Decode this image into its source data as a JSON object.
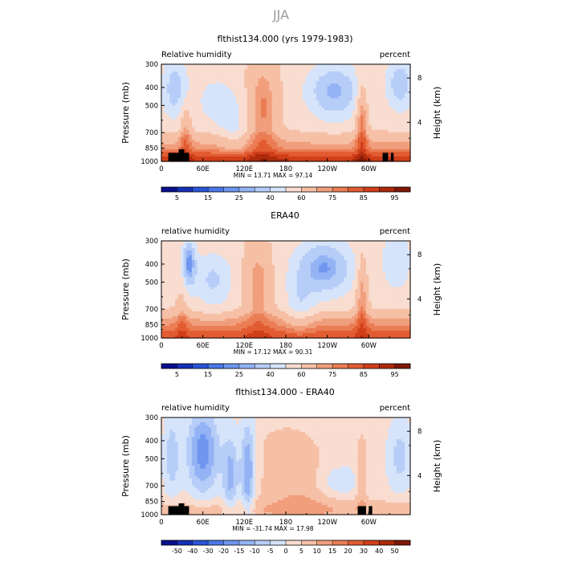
{
  "figure": {
    "suptitle": "JJA"
  },
  "chart_data": [
    {
      "type": "heatmap",
      "title": "flthist134.000 (yrs 1979-1983)",
      "left_label": "Relative humidity",
      "right_label": "percent",
      "xlabel": "",
      "ylabel": "Pressure  (mb)",
      "ylabel_right": "Height  (km)",
      "x_ticks": [
        "0",
        "60E",
        "120E",
        "180",
        "120W",
        "60W"
      ],
      "x_tick_values": [
        0,
        60,
        120,
        180,
        240,
        300
      ],
      "xlim": [
        0,
        360
      ],
      "y_ticks": [
        "300",
        "400",
        "500",
        "700",
        "850",
        "1000"
      ],
      "y_tick_values": [
        300,
        400,
        500,
        700,
        850,
        1000
      ],
      "ylim": [
        1000,
        300
      ],
      "y_scale": "log",
      "y_right_ticks": [
        "8",
        "4"
      ],
      "y_right_tick_values": [
        8,
        4
      ],
      "stats_text": "MIN =   13.71   MAX =   97.14",
      "min": 13.71,
      "max": 97.14,
      "colorbar": {
        "labels": [
          "5",
          "15",
          "25",
          "40",
          "60",
          "75",
          "85",
          "95"
        ],
        "label_positions": [
          1,
          3,
          5,
          7,
          9,
          11,
          13,
          15
        ],
        "colors": [
          "#08108c",
          "#1630b8",
          "#2a55d8",
          "#4a78e8",
          "#6e96ef",
          "#93b3f4",
          "#b6cdf8",
          "#d6e4fb",
          "#f9ddd0",
          "#f6c0a6",
          "#f19e7c",
          "#eb7d55",
          "#e25c32",
          "#d03f1a",
          "#ad2a0c",
          "#7f1808"
        ]
      },
      "mode": "abs",
      "topography": [
        [
          10,
          25,
          900
        ],
        [
          25,
          33,
          860
        ],
        [
          33,
          40,
          900
        ],
        [
          320,
          328,
          900
        ],
        [
          332,
          336,
          900
        ]
      ]
    },
    {
      "type": "heatmap",
      "title": "ERA40",
      "left_label": "relative humidity",
      "right_label": "percent",
      "xlabel": "",
      "ylabel": "Pressure  (mb)",
      "ylabel_right": "Height  (km)",
      "x_ticks": [
        "0",
        "60E",
        "120E",
        "180",
        "120W",
        "60W"
      ],
      "x_tick_values": [
        0,
        60,
        120,
        180,
        240,
        300
      ],
      "xlim": [
        0,
        360
      ],
      "y_ticks": [
        "300",
        "400",
        "500",
        "700",
        "850",
        "1000"
      ],
      "y_tick_values": [
        300,
        400,
        500,
        700,
        850,
        1000
      ],
      "ylim": [
        1000,
        300
      ],
      "y_scale": "log",
      "y_right_ticks": [
        "8",
        "4"
      ],
      "y_right_tick_values": [
        8,
        4
      ],
      "stats_text": "MIN =   17.12   MAX =   90.31",
      "min": 17.12,
      "max": 90.31,
      "colorbar": {
        "labels": [
          "5",
          "15",
          "25",
          "40",
          "60",
          "75",
          "85",
          "95"
        ],
        "label_positions": [
          1,
          3,
          5,
          7,
          9,
          11,
          13,
          15
        ],
        "colors": [
          "#08108c",
          "#1630b8",
          "#2a55d8",
          "#4a78e8",
          "#6e96ef",
          "#93b3f4",
          "#b6cdf8",
          "#d6e4fb",
          "#f9ddd0",
          "#f6c0a6",
          "#f19e7c",
          "#eb7d55",
          "#e25c32",
          "#d03f1a",
          "#ad2a0c",
          "#7f1808"
        ]
      },
      "mode": "abs2",
      "topography": []
    },
    {
      "type": "heatmap",
      "title": "flthist134.000 - ERA40",
      "left_label": "relative humidity",
      "right_label": "percent",
      "xlabel": "",
      "ylabel": "Pressure  (mb)",
      "ylabel_right": "Height  (km)",
      "x_ticks": [
        "0",
        "60E",
        "120E",
        "180",
        "120W",
        "60W"
      ],
      "x_tick_values": [
        0,
        60,
        120,
        180,
        240,
        300
      ],
      "xlim": [
        0,
        360
      ],
      "y_ticks": [
        "300",
        "400",
        "500",
        "700",
        "850",
        "1000"
      ],
      "y_tick_values": [
        300,
        400,
        500,
        700,
        850,
        1000
      ],
      "ylim": [
        1000,
        300
      ],
      "y_scale": "log",
      "y_right_ticks": [
        "8",
        "4"
      ],
      "y_right_tick_values": [
        8,
        4
      ],
      "stats_text": "MIN =  -31.74   MAX =   17.98",
      "min": -31.74,
      "max": 17.98,
      "colorbar": {
        "labels": [
          "-50",
          "-40",
          "-30",
          "-20",
          "-15",
          "-10",
          "-5",
          "0",
          "5",
          "10",
          "15",
          "20",
          "30",
          "40",
          "50"
        ],
        "label_positions": [
          1,
          2,
          3,
          4,
          5,
          6,
          7,
          8,
          9,
          10,
          11,
          12,
          13,
          14,
          15
        ],
        "colors": [
          "#08108c",
          "#1630b8",
          "#2a55d8",
          "#4a78e8",
          "#6e96ef",
          "#93b3f4",
          "#b6cdf8",
          "#d6e4fb",
          "#f9ddd0",
          "#f6c0a6",
          "#f19e7c",
          "#eb7d55",
          "#e25c32",
          "#d03f1a",
          "#ad2a0c",
          "#7f1808"
        ]
      },
      "mode": "diff",
      "topography": [
        [
          10,
          25,
          900
        ],
        [
          25,
          33,
          870
        ],
        [
          33,
          40,
          900
        ],
        [
          284,
          296,
          900
        ],
        [
          300,
          305,
          900
        ]
      ]
    }
  ]
}
